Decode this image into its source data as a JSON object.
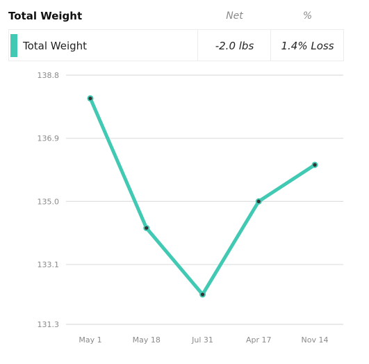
{
  "header": {
    "title": "Total Weight",
    "net_label": "Net",
    "pct_label": "%"
  },
  "summary": {
    "label": "Total Weight",
    "net": "-2.0 lbs",
    "pct": "1.4% Loss",
    "color": "#42c9b3"
  },
  "chart_data": {
    "type": "line",
    "categories": [
      "May 1",
      "May 18",
      "Jul 31",
      "Apr 17",
      "Nov 14"
    ],
    "series": [
      {
        "name": "Total Weight",
        "values": [
          138.1,
          134.2,
          132.2,
          135.0,
          136.1
        ],
        "color": "#42c9b3"
      }
    ],
    "yticks": [
      "138.8",
      "136.9",
      "135.0",
      "133.1",
      "131.3"
    ],
    "ylim": [
      131.3,
      138.8
    ],
    "grid": true,
    "point_color": "#333333"
  }
}
